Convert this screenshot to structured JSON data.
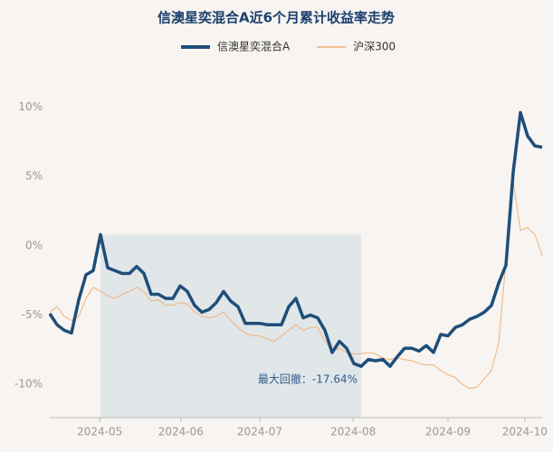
{
  "chart_data": {
    "type": "line",
    "title": "信澳星奕混合A近6个月累计收益率走势",
    "annotation": "最大回撤：-17.64%",
    "x": [
      0,
      1,
      2,
      3,
      4,
      5,
      6,
      7,
      8,
      9,
      10,
      11,
      12,
      13,
      14,
      15,
      16,
      17,
      18,
      19,
      20,
      21,
      22,
      23,
      24,
      25,
      26,
      27,
      28,
      29,
      30,
      31,
      32,
      33,
      34,
      35,
      36,
      37,
      38,
      39,
      40,
      41,
      42,
      43,
      44,
      45,
      46,
      47,
      48,
      49,
      50,
      51,
      52,
      53,
      54,
      55,
      56,
      57,
      58,
      59,
      60,
      61,
      62,
      63,
      64,
      65,
      66,
      67,
      68
    ],
    "series": [
      {
        "name": "信澳星奕混合A",
        "color": "#1f4e79",
        "width": 3.5,
        "values": [
          -4.9,
          -5.7,
          -6.1,
          -6.3,
          -3.9,
          -2.1,
          -1.8,
          0.8,
          -1.6,
          -1.8,
          -2.0,
          -2.0,
          -1.5,
          -2.0,
          -3.5,
          -3.5,
          -3.8,
          -3.8,
          -2.9,
          -3.3,
          -4.3,
          -4.8,
          -4.6,
          -4.1,
          -3.3,
          -4.0,
          -4.4,
          -5.6,
          -5.6,
          -5.6,
          -5.7,
          -5.7,
          -5.7,
          -4.4,
          -3.8,
          -5.2,
          -5.0,
          -5.2,
          -6.1,
          -7.7,
          -6.9,
          -7.4,
          -8.5,
          -8.7,
          -8.2,
          -8.3,
          -8.2,
          -8.7,
          -8.0,
          -7.4,
          -7.4,
          -7.6,
          -7.2,
          -7.7,
          -6.4,
          -6.5,
          -5.9,
          -5.7,
          -5.3,
          -5.1,
          -4.8,
          -4.3,
          -2.7,
          -1.4,
          5.3,
          9.6,
          7.9,
          7.2,
          7.1
        ]
      },
      {
        "name": "沪深300",
        "color": "#f0b27a",
        "width": 1,
        "values": [
          -4.8,
          -4.4,
          -5.1,
          -5.4,
          -5.1,
          -3.8,
          -3.0,
          -3.3,
          -3.6,
          -3.8,
          -3.5,
          -3.3,
          -3.0,
          -3.3,
          -4.0,
          -3.9,
          -4.3,
          -4.3,
          -4.1,
          -4.2,
          -4.8,
          -5.1,
          -5.2,
          -5.1,
          -4.8,
          -5.4,
          -5.9,
          -6.3,
          -6.5,
          -6.5,
          -6.7,
          -6.9,
          -6.5,
          -6.1,
          -5.7,
          -6.1,
          -5.9,
          -5.9,
          -6.9,
          -7.6,
          -7.4,
          -7.7,
          -7.8,
          -7.8,
          -7.7,
          -7.8,
          -8.1,
          -8.2,
          -8.1,
          -8.2,
          -8.3,
          -8.5,
          -8.6,
          -8.6,
          -9.0,
          -9.3,
          -9.5,
          -10.0,
          -10.3,
          -10.2,
          -9.6,
          -9.0,
          -7.0,
          -1.2,
          4.7,
          1.1,
          1.3,
          0.8,
          -0.7
        ]
      }
    ],
    "xlim": [
      0,
      68
    ],
    "xticks": [
      {
        "value": 6.9,
        "label": "2024-05"
      },
      {
        "value": 18.1,
        "label": "2024-06"
      },
      {
        "value": 29,
        "label": "2024-07"
      },
      {
        "value": 41.9,
        "label": "2024-08"
      },
      {
        "value": 55,
        "label": "2024-09"
      },
      {
        "value": 65.6,
        "label": "2024-10"
      }
    ],
    "ylim": [
      -12.4,
      11.2
    ],
    "yticks": [
      {
        "value": 10,
        "label": "10%"
      },
      {
        "value": 5,
        "label": "5%"
      },
      {
        "value": 0,
        "label": "0%"
      },
      {
        "value": -5,
        "label": "-5%"
      },
      {
        "value": -10,
        "label": "-10%"
      }
    ]
  }
}
